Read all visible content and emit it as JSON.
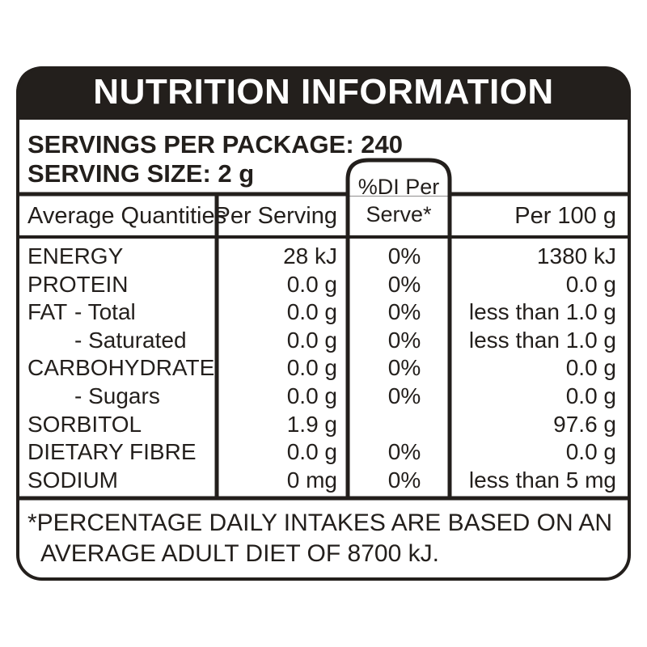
{
  "title": "NUTRITION INFORMATION",
  "servings_per_package_label": "SERVINGS PER PACKAGE: 240",
  "serving_size_label": "SERVING SIZE: 2 g",
  "columns": {
    "quantities": "Average Quantities",
    "per_serving": "Per Serving",
    "di_line1": "%DI Per",
    "di_line2": "Serve*",
    "per_100g": "Per 100 g"
  },
  "rows": [
    {
      "name": "ENERGY",
      "sub": "",
      "per_serving": "28 kJ",
      "di": "0%",
      "per_100g": "1380 kJ"
    },
    {
      "name": "PROTEIN",
      "sub": "",
      "per_serving": "0.0 g",
      "di": "0%",
      "per_100g": "0.0 g"
    },
    {
      "name": "FAT",
      "sub": "- Total",
      "per_serving": "0.0 g",
      "di": "0%",
      "per_100g": "less than 1.0 g"
    },
    {
      "name": "",
      "sub": "- Saturated",
      "per_serving": "0.0 g",
      "di": "0%",
      "per_100g": "less than 1.0 g"
    },
    {
      "name": "CARBOHYDRATE",
      "sub": "",
      "per_serving": "0.0 g",
      "di": "0%",
      "per_100g": "0.0 g"
    },
    {
      "name": "",
      "sub": "- Sugars",
      "per_serving": "0.0 g",
      "di": "0%",
      "per_100g": "0.0 g"
    },
    {
      "name": "SORBITOL",
      "sub": "",
      "per_serving": "1.9 g",
      "di": "",
      "per_100g": "97.6 g"
    },
    {
      "name": "DIETARY FIBRE",
      "sub": "",
      "per_serving": "0.0 g",
      "di": "0%",
      "per_100g": "0.0 g"
    },
    {
      "name": "SODIUM",
      "sub": "",
      "per_serving": "0 mg",
      "di": "0%",
      "per_100g": "less than 5 mg"
    }
  ],
  "footnote_line1": "*PERCENTAGE DAILY INTAKES ARE BASED ON AN",
  "footnote_line2": "AVERAGE ADULT DIET OF 8700 kJ.",
  "colors": {
    "ink": "#231f1c",
    "paper": "#ffffff"
  }
}
